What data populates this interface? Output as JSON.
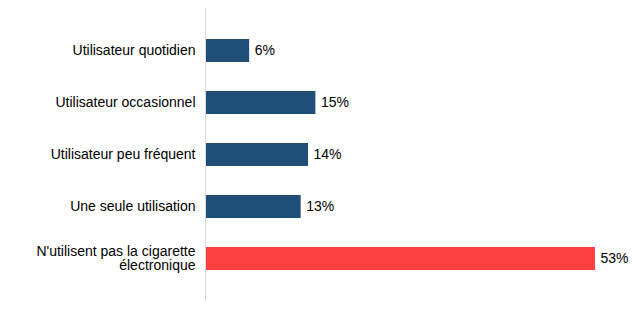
{
  "chart_data": {
    "type": "bar",
    "orientation": "horizontal",
    "categories": [
      "Utilisateur quotidien",
      "Utilisateur occasionnel",
      "Utilisateur peu fréquent",
      "Une seule utilisation",
      "N'utilisent pas la cigarette électronique"
    ],
    "values": [
      6,
      15,
      14,
      13,
      53
    ],
    "value_labels": [
      "6%",
      "15%",
      "14%",
      "13%",
      "53%"
    ],
    "colors": [
      "#1f4e79",
      "#1f4e79",
      "#1f4e79",
      "#1f4e79",
      "#ff4040"
    ],
    "xlim": [
      0,
      53
    ],
    "data_labels": true,
    "tick_labels": "y",
    "grid": false
  }
}
